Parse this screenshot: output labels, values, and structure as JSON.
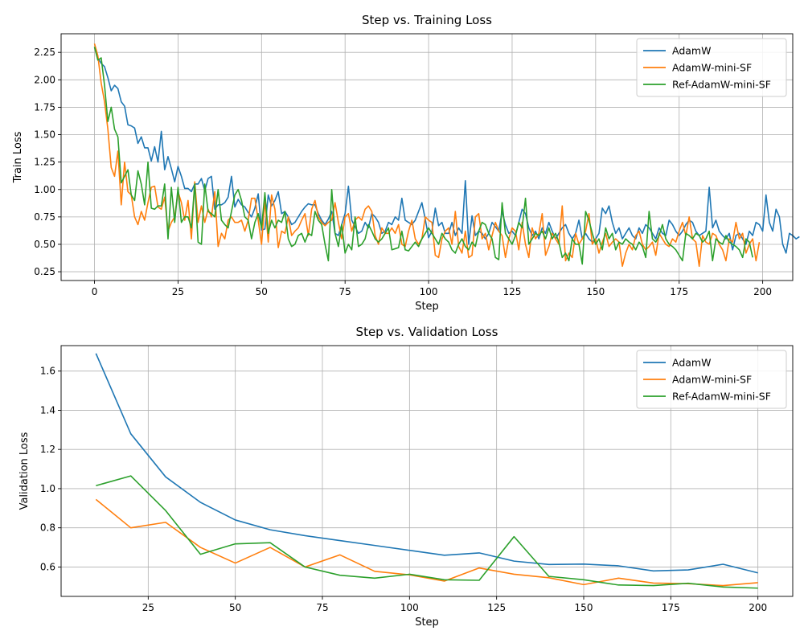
{
  "chart_data": [
    {
      "type": "line",
      "title": "Step vs. Training Loss",
      "xlabel": "Step",
      "ylabel": "Train Loss",
      "xlim": [
        -10,
        209
      ],
      "ylim": [
        0.17,
        2.42
      ],
      "xticks": [
        0,
        25,
        50,
        75,
        100,
        125,
        150,
        175,
        200
      ],
      "yticks": [
        0.25,
        0.5,
        0.75,
        1.0,
        1.25,
        1.5,
        1.75,
        2.0,
        2.25
      ],
      "ytick_labels": [
        "0.25",
        "0.50",
        "0.75",
        "1.00",
        "1.25",
        "1.50",
        "1.75",
        "2.00",
        "2.25"
      ],
      "grid": true,
      "legend": "top-right",
      "series": [
        {
          "name": "AdamW",
          "color": "#1f77b4",
          "x_start": 0,
          "x_step": 1,
          "values": [
            2.3,
            2.2,
            2.15,
            2.12,
            2.02,
            1.9,
            1.95,
            1.92,
            1.8,
            1.76,
            1.59,
            1.58,
            1.56,
            1.42,
            1.48,
            1.38,
            1.38,
            1.26,
            1.39,
            1.25,
            1.53,
            1.18,
            1.3,
            1.19,
            1.07,
            1.21,
            1.12,
            1.01,
            1.01,
            0.98,
            1.05,
            1.05,
            1.1,
            0.99,
            1.1,
            1.12,
            0.82,
            0.86,
            0.86,
            0.88,
            0.93,
            1.12,
            0.84,
            0.91,
            0.86,
            0.84,
            0.79,
            0.75,
            0.83,
            0.96,
            0.63,
            0.64,
            0.95,
            0.85,
            0.9,
            0.98,
            0.78,
            0.8,
            0.75,
            0.68,
            0.7,
            0.75,
            0.8,
            0.84,
            0.87,
            0.86,
            0.86,
            0.78,
            0.72,
            0.68,
            0.73,
            0.8,
            0.6,
            0.58,
            0.68,
            0.78,
            1.03,
            0.72,
            0.66,
            0.6,
            0.62,
            0.7,
            0.65,
            0.78,
            0.75,
            0.7,
            0.6,
            0.62,
            0.7,
            0.68,
            0.75,
            0.72,
            0.92,
            0.72,
            0.7,
            0.68,
            0.72,
            0.8,
            0.88,
            0.73,
            0.56,
            0.62,
            0.83,
            0.67,
            0.7,
            0.6,
            0.6,
            0.7,
            0.58,
            0.65,
            0.6,
            1.08,
            0.5,
            0.76,
            0.58,
            0.62,
            0.6,
            0.55,
            0.6,
            0.7,
            0.66,
            0.62,
            0.8,
            0.68,
            0.6,
            0.62,
            0.58,
            0.7,
            0.82,
            0.78,
            0.65,
            0.58,
            0.62,
            0.55,
            0.65,
            0.6,
            0.7,
            0.62,
            0.55,
            0.6,
            0.65,
            0.68,
            0.6,
            0.55,
            0.6,
            0.72,
            0.55,
            0.6,
            0.55,
            0.52,
            0.55,
            0.6,
            0.83,
            0.78,
            0.85,
            0.7,
            0.6,
            0.65,
            0.55,
            0.6,
            0.65,
            0.58,
            0.55,
            0.65,
            0.6,
            0.68,
            0.65,
            0.6,
            0.55,
            0.65,
            0.6,
            0.58,
            0.72,
            0.68,
            0.62,
            0.58,
            0.62,
            0.68,
            0.72,
            0.7,
            0.62,
            0.58,
            0.6,
            0.62,
            1.02,
            0.65,
            0.72,
            0.62,
            0.58,
            0.55,
            0.6,
            0.45,
            0.58,
            0.6,
            0.55,
            0.5,
            0.62,
            0.58,
            0.7,
            0.68,
            0.62,
            0.95,
            0.7,
            0.62,
            0.82,
            0.75,
            0.5,
            0.42,
            0.6,
            0.58,
            0.55,
            0.57
          ]
        },
        {
          "name": "AdamW-mini-SF",
          "color": "#ff7f0e",
          "x_start": 0,
          "x_step": 1,
          "values": [
            2.33,
            2.22,
            1.97,
            1.8,
            1.55,
            1.2,
            1.12,
            1.35,
            0.86,
            1.25,
            0.98,
            0.95,
            0.75,
            0.68,
            0.8,
            0.72,
            0.88,
            1.02,
            1.03,
            0.84,
            0.82,
            0.93,
            0.62,
            0.7,
            0.75,
            0.98,
            0.88,
            0.72,
            0.9,
            0.55,
            1.07,
            0.7,
            0.85,
            0.7,
            0.82,
            0.75,
            0.98,
            0.48,
            0.6,
            0.55,
            0.72,
            0.75,
            0.7,
            0.7,
            0.72,
            0.62,
            0.72,
            0.92,
            0.92,
            0.72,
            0.5,
            0.9,
            0.52,
            0.95,
            0.82,
            0.47,
            0.62,
            0.6,
            0.75,
            0.58,
            0.62,
            0.65,
            0.72,
            0.78,
            0.58,
            0.82,
            0.9,
            0.75,
            0.7,
            0.67,
            0.7,
            0.72,
            0.88,
            0.7,
            0.55,
            0.75,
            0.78,
            0.62,
            0.72,
            0.75,
            0.72,
            0.82,
            0.85,
            0.8,
            0.58,
            0.5,
            0.65,
            0.6,
            0.6,
            0.65,
            0.6,
            0.68,
            0.5,
            0.48,
            0.62,
            0.72,
            0.55,
            0.5,
            0.55,
            0.75,
            0.72,
            0.7,
            0.4,
            0.38,
            0.55,
            0.62,
            0.65,
            0.5,
            0.8,
            0.48,
            0.42,
            0.62,
            0.38,
            0.4,
            0.75,
            0.78,
            0.55,
            0.6,
            0.45,
            0.58,
            0.7,
            0.62,
            0.58,
            0.38,
            0.55,
            0.65,
            0.62,
            0.45,
            0.7,
            0.5,
            0.38,
            0.65,
            0.55,
            0.6,
            0.78,
            0.4,
            0.48,
            0.6,
            0.55,
            0.5,
            0.85,
            0.35,
            0.42,
            0.38,
            0.6,
            0.5,
            0.55,
            0.62,
            0.78,
            0.5,
            0.55,
            0.42,
            0.52,
            0.6,
            0.48,
            0.52,
            0.55,
            0.52,
            0.3,
            0.42,
            0.5,
            0.45,
            0.58,
            0.62,
            0.5,
            0.45,
            0.48,
            0.52,
            0.4,
            0.6,
            0.55,
            0.5,
            0.48,
            0.55,
            0.52,
            0.62,
            0.7,
            0.58,
            0.75,
            0.55,
            0.52,
            0.3,
            0.58,
            0.52,
            0.5,
            0.6,
            0.58,
            0.5,
            0.45,
            0.35,
            0.55,
            0.52,
            0.7,
            0.55,
            0.6,
            0.42,
            0.5,
            0.55,
            0.35,
            0.52
          ]
        },
        {
          "name": "Ref-AdamW-mini-SF",
          "color": "#2ca02c",
          "x_start": 0,
          "x_step": 1,
          "values": [
            2.3,
            2.18,
            2.2,
            1.95,
            1.62,
            1.75,
            1.55,
            1.48,
            1.06,
            1.12,
            1.18,
            0.95,
            0.9,
            1.17,
            1.05,
            0.86,
            1.25,
            0.83,
            0.82,
            0.85,
            0.85,
            1.05,
            0.55,
            1.02,
            0.7,
            1.02,
            0.7,
            0.75,
            0.75,
            0.65,
            1.05,
            0.52,
            0.5,
            1.05,
            0.8,
            0.78,
            0.75,
            1.0,
            0.72,
            0.68,
            0.65,
            0.8,
            0.95,
            1.0,
            0.9,
            0.75,
            0.72,
            0.55,
            0.7,
            0.78,
            0.65,
            0.97,
            0.6,
            0.72,
            0.65,
            0.72,
            0.7,
            0.8,
            0.55,
            0.48,
            0.5,
            0.58,
            0.6,
            0.52,
            0.6,
            0.58,
            0.8,
            0.72,
            0.68,
            0.5,
            0.35,
            1.0,
            0.6,
            0.48,
            0.68,
            0.42,
            0.5,
            0.45,
            0.75,
            0.48,
            0.5,
            0.55,
            0.68,
            0.62,
            0.55,
            0.52,
            0.55,
            0.6,
            0.65,
            0.45,
            0.46,
            0.47,
            0.62,
            0.45,
            0.44,
            0.48,
            0.52,
            0.48,
            0.55,
            0.6,
            0.65,
            0.6,
            0.55,
            0.5,
            0.6,
            0.55,
            0.52,
            0.45,
            0.42,
            0.5,
            0.55,
            0.48,
            0.45,
            0.52,
            0.48,
            0.62,
            0.7,
            0.68,
            0.6,
            0.55,
            0.38,
            0.36,
            0.88,
            0.6,
            0.55,
            0.5,
            0.58,
            0.7,
            0.65,
            0.92,
            0.5,
            0.55,
            0.6,
            0.58,
            0.62,
            0.55,
            0.65,
            0.55,
            0.6,
            0.52,
            0.38,
            0.42,
            0.35,
            0.55,
            0.5,
            0.5,
            0.32,
            0.8,
            0.72,
            0.6,
            0.5,
            0.55,
            0.45,
            0.65,
            0.55,
            0.6,
            0.45,
            0.52,
            0.5,
            0.55,
            0.52,
            0.5,
            0.45,
            0.52,
            0.48,
            0.38,
            0.8,
            0.55,
            0.52,
            0.58,
            0.68,
            0.55,
            0.5,
            0.48,
            0.45,
            0.4,
            0.35,
            0.6,
            0.58,
            0.55,
            0.6,
            0.58,
            0.52,
            0.55,
            0.62,
            0.35,
            0.55,
            0.52,
            0.5,
            0.58,
            0.52,
            0.5,
            0.48,
            0.45,
            0.38,
            0.55,
            0.52,
            0.38
          ]
        }
      ]
    },
    {
      "type": "line",
      "title": "Step vs. Validation Loss",
      "xlabel": "Step",
      "ylabel": "Validation Loss",
      "xlim": [
        0,
        210
      ],
      "ylim": [
        0.45,
        1.73
      ],
      "xticks": [
        25,
        50,
        75,
        100,
        125,
        150,
        175,
        200
      ],
      "yticks": [
        0.6,
        0.8,
        1.0,
        1.2,
        1.4,
        1.6
      ],
      "ytick_labels": [
        "0.6",
        "0.8",
        "1.0",
        "1.2",
        "1.4",
        "1.6"
      ],
      "grid": true,
      "legend": "top-right",
      "x": [
        10,
        20,
        30,
        40,
        50,
        60,
        70,
        80,
        90,
        100,
        110,
        120,
        130,
        140,
        150,
        160,
        170,
        180,
        190,
        200
      ],
      "series": [
        {
          "name": "AdamW",
          "color": "#1f77b4",
          "values": [
            1.69,
            1.28,
            1.06,
            0.93,
            0.84,
            0.79,
            0.76,
            0.735,
            0.71,
            0.685,
            0.66,
            0.672,
            0.63,
            0.613,
            0.615,
            0.606,
            0.58,
            0.585,
            0.614,
            0.57
          ]
        },
        {
          "name": "AdamW-mini-SF",
          "color": "#ff7f0e",
          "values": [
            0.945,
            0.8,
            0.828,
            0.7,
            0.62,
            0.7,
            0.6,
            0.662,
            0.578,
            0.56,
            0.528,
            0.595,
            0.563,
            0.545,
            0.51,
            0.543,
            0.518,
            0.515,
            0.505,
            0.52
          ]
        },
        {
          "name": "Ref-AdamW-mini-SF",
          "color": "#2ca02c",
          "values": [
            1.015,
            1.065,
            0.888,
            0.665,
            0.718,
            0.724,
            0.6,
            0.558,
            0.543,
            0.563,
            0.535,
            0.532,
            0.755,
            0.552,
            0.535,
            0.508,
            0.505,
            0.517,
            0.498,
            0.492
          ]
        }
      ]
    }
  ]
}
